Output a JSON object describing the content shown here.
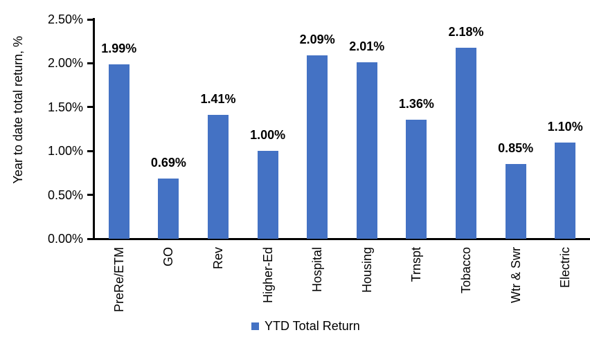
{
  "chart_data": {
    "type": "bar",
    "title": "",
    "categories": [
      "PreRe/ETM",
      "GO",
      "Rev",
      "Higher-Ed",
      "Hospital",
      "Housing",
      "Trnspt",
      "Tobacco",
      "Wtr & Swr",
      "Electric"
    ],
    "values": [
      1.99,
      0.69,
      1.41,
      1.0,
      2.09,
      2.01,
      1.36,
      2.18,
      0.85,
      1.1
    ],
    "data_labels": [
      "1.99%",
      "0.69%",
      "1.41%",
      "1.00%",
      "2.09%",
      "2.01%",
      "1.36%",
      "2.18%",
      "0.85%",
      "1.10%"
    ],
    "xlabel": "",
    "ylabel": "Year to date total return, %",
    "y_ticks": [
      "2.50%",
      "2.00%",
      "1.50%",
      "1.00%",
      "0.50%",
      "0.00%"
    ],
    "ylim": [
      0,
      2.5
    ],
    "grid": false,
    "legend_position": "bottom",
    "series_name": "YTD Total Return",
    "bar_color": "#4472C4",
    "axis_color": "#000000",
    "label_color": "#000000"
  },
  "legend": {
    "label": "YTD Total Return"
  }
}
